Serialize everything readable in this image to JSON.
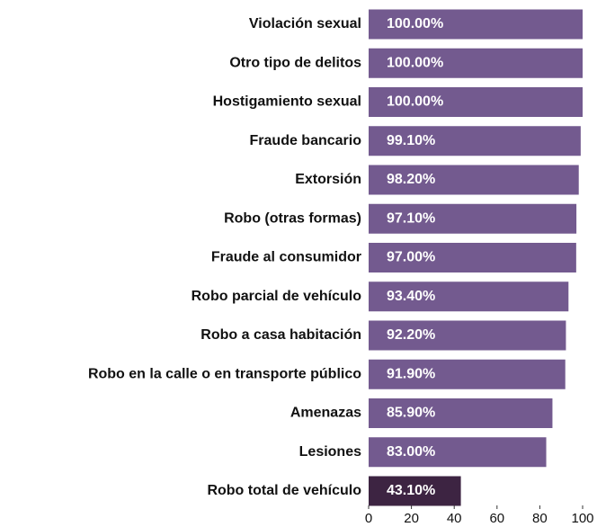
{
  "chart_data": {
    "type": "bar",
    "orientation": "horizontal",
    "categories": [
      "Violación sexual",
      "Otro tipo de delitos",
      "Hostigamiento sexual",
      "Fraude bancario",
      "Extorsión",
      "Robo (otras formas)",
      "Fraude al consumidor",
      "Robo parcial de vehículo",
      "Robo a casa habitación",
      "Robo en la calle o en transporte público",
      "Amenazas",
      "Lesiones",
      "Robo total de vehículo"
    ],
    "values": [
      100,
      100,
      100,
      99.1,
      98.2,
      97.1,
      97,
      93.4,
      92.2,
      91.9,
      85.9,
      83,
      43.1
    ],
    "value_labels": [
      "100.00%",
      "100.00%",
      "100.00%",
      "99.10%",
      "98.20%",
      "97.10%",
      "97.00%",
      "93.40%",
      "92.20%",
      "91.90%",
      "85.90%",
      "83.00%",
      "43.10%"
    ],
    "colors": [
      "#735a8f",
      "#735a8f",
      "#735a8f",
      "#735a8f",
      "#735a8f",
      "#735a8f",
      "#735a8f",
      "#735a8f",
      "#735a8f",
      "#735a8f",
      "#735a8f",
      "#735a8f",
      "#3d2442"
    ],
    "xlim": [
      0,
      100
    ],
    "xticks": [
      0,
      20,
      40,
      60,
      80,
      100
    ]
  }
}
